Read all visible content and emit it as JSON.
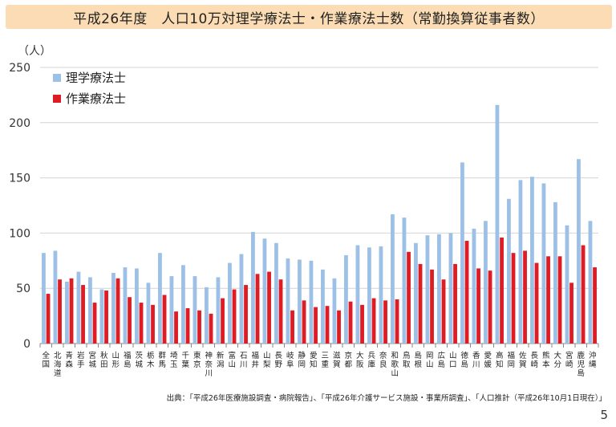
{
  "title": "平成26年度　人口10万対理学療法士・作業療法士数（常勤換算従事者数）",
  "source": "出典：「平成26年医療施設調査・病院報告」、「平成26年介護サービス施設・事業所調査」、「人口推計（平成26年10月1日現在）」",
  "page_number": "5",
  "colors": {
    "pt": "#9dc0e6",
    "ot": "#dd1c24",
    "title_bg": "#fbdcb4"
  },
  "chart_data": {
    "type": "bar",
    "unit_label": "（人）",
    "ylim": [
      0,
      250
    ],
    "yticks": [
      0,
      50,
      100,
      150,
      200,
      250
    ],
    "grid": true,
    "legend_position": "top-left",
    "categories": [
      "全国",
      "北海道",
      "青森",
      "岩手",
      "宮城",
      "秋田",
      "山形",
      "福島",
      "茨城",
      "栃木",
      "群馬",
      "埼玉",
      "千葉",
      "東京",
      "神奈川",
      "新潟",
      "富山",
      "石川",
      "福井",
      "山梨",
      "長野",
      "岐阜",
      "静岡",
      "愛知",
      "三重",
      "滋賀",
      "京都",
      "大阪",
      "兵庫",
      "奈良",
      "和歌山",
      "鳥取",
      "島根",
      "岡山",
      "広島",
      "山口",
      "徳島",
      "香川",
      "愛媛",
      "高知",
      "福岡",
      "佐賀",
      "長崎",
      "熊本",
      "大分",
      "宮崎",
      "鹿児島",
      "沖縄"
    ],
    "series": [
      {
        "name": "理学療法士",
        "values": [
          82,
          84,
          56,
          65,
          60,
          49,
          64,
          69,
          68,
          55,
          82,
          61,
          71,
          61,
          51,
          60,
          73,
          81,
          101,
          95,
          91,
          77,
          76,
          75,
          67,
          59,
          80,
          89,
          87,
          88,
          117,
          114,
          91,
          98,
          99,
          100,
          164,
          104,
          111,
          216,
          131,
          148,
          151,
          145,
          128,
          107,
          167,
          111
        ]
      },
      {
        "name": "作業療法士",
        "values": [
          45,
          58,
          59,
          53,
          37,
          48,
          59,
          42,
          37,
          35,
          44,
          29,
          32,
          30,
          27,
          41,
          49,
          53,
          63,
          65,
          58,
          30,
          39,
          33,
          34,
          30,
          38,
          35,
          41,
          39,
          40,
          83,
          72,
          67,
          58,
          72,
          93,
          68,
          66,
          96,
          82,
          84,
          73,
          79,
          79,
          55,
          89,
          69
        ]
      }
    ]
  }
}
